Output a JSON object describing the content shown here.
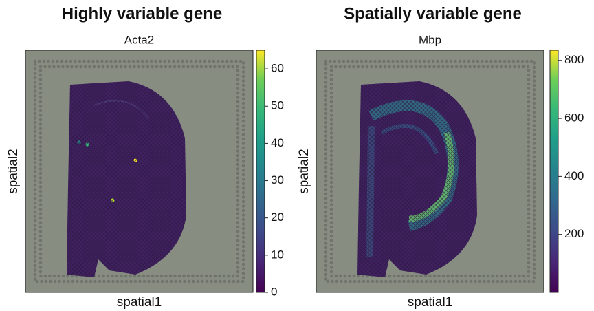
{
  "chart_data": [
    {
      "type": "spatial",
      "title": "Highly variable gene",
      "subtitle": "Acta2",
      "xlabel": "spatial1",
      "ylabel": "spatial2",
      "colormap": "viridis",
      "clim": [
        0,
        65
      ],
      "cticks": [
        0,
        10,
        20,
        30,
        40,
        50,
        60
      ]
    },
    {
      "type": "spatial",
      "title": "Spatially variable gene",
      "subtitle": "Mbp",
      "xlabel": "spatial1",
      "ylabel": "spatial2",
      "colormap": "viridis",
      "clim": [
        0,
        835
      ],
      "cticks": [
        200,
        400,
        600,
        800
      ]
    }
  ]
}
